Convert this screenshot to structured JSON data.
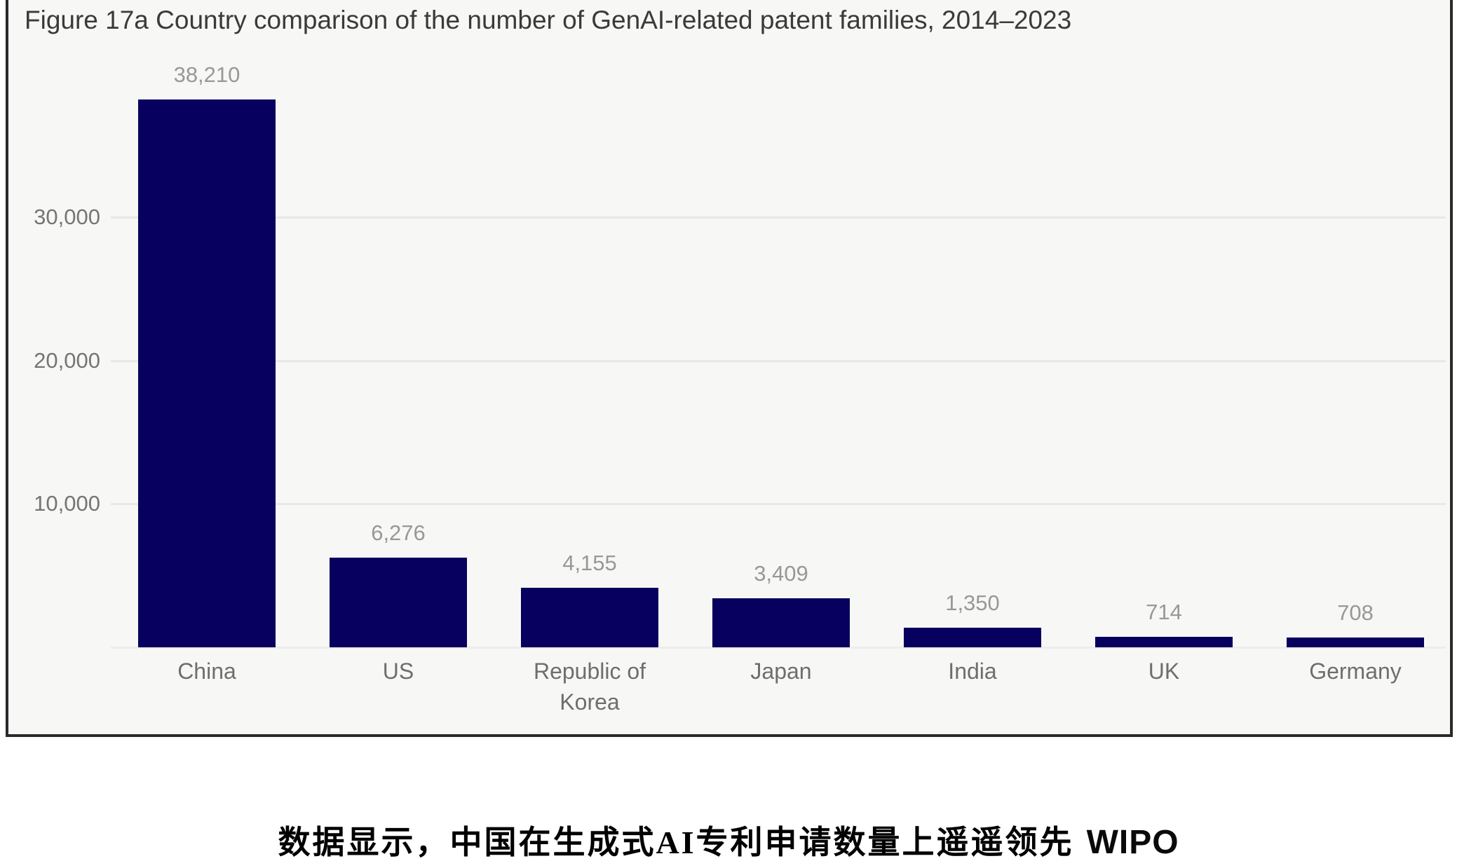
{
  "figure": {
    "title": "Figure 17a Country comparison of the number of GenAI-related patent families, 2014–2023"
  },
  "chart_data": {
    "type": "bar",
    "title": "Figure 17a Country comparison of the number of GenAI-related patent families, 2014–2023",
    "categories": [
      "China",
      "US",
      "Republic of Korea",
      "Japan",
      "India",
      "UK",
      "Germany"
    ],
    "values": [
      38210,
      6276,
      4155,
      3409,
      1350,
      714,
      708
    ],
    "value_labels": [
      "38,210",
      "6,276",
      "4,155",
      "3,409",
      "1,350",
      "714",
      "708"
    ],
    "xlabel": "",
    "ylabel": "",
    "ylim": [
      0,
      40000
    ],
    "y_ticks": [
      {
        "value": 10000,
        "label": "10,000"
      },
      {
        "value": 20000,
        "label": "20,000"
      },
      {
        "value": 30000,
        "label": "30,000"
      }
    ],
    "grid": "horizontal",
    "legend_position": "none",
    "bar_color": "#07005e",
    "plot_background": "#f7f7f6",
    "frame_border_color": "#2a2a2a",
    "gridline_color": "#e8e8e8",
    "tick_label_color": "#757575",
    "value_label_color": "#989898",
    "category_label_color": "#6e6e6e"
  },
  "caption": {
    "chinese_text": "数据显示，中国在生成式AI专利申请数量上遥遥领先",
    "source_label": "WIPO"
  }
}
